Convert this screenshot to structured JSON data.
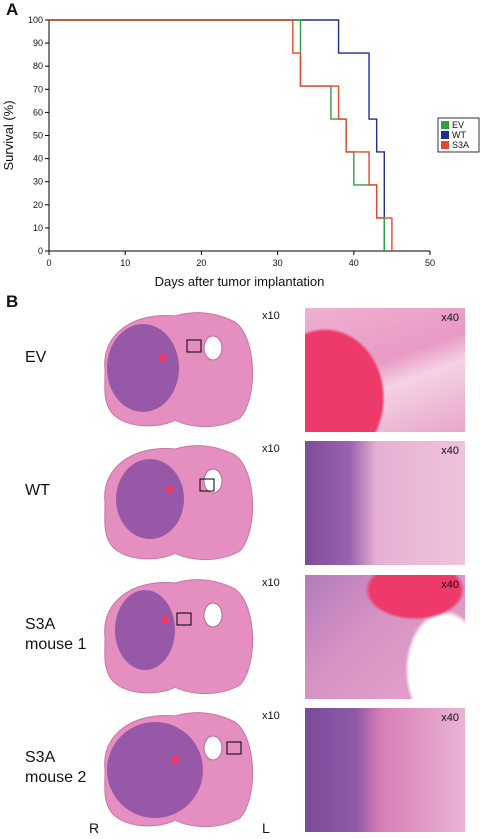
{
  "panel_a_letter": "A",
  "panel_b_letter": "B",
  "chart_data": {
    "type": "line",
    "step": true,
    "title": "",
    "xlabel": "Days after tumor implantation",
    "ylabel": "Survival (%)",
    "xlim": [
      0,
      50
    ],
    "ylim": [
      0,
      100
    ],
    "xticks": [
      0,
      10,
      20,
      30,
      40,
      50
    ],
    "yticks": [
      0,
      10,
      20,
      30,
      40,
      50,
      60,
      70,
      80,
      90,
      100
    ],
    "grid": false,
    "legend_position": "right",
    "series": [
      {
        "name": "EV",
        "color": "#2ea043",
        "x": [
          0,
          33,
          37,
          39,
          40,
          43,
          44,
          44
        ],
        "y": [
          100,
          71.4,
          57.1,
          42.9,
          28.6,
          14.3,
          0,
          0
        ]
      },
      {
        "name": "WT",
        "color": "#1f2d8f",
        "x": [
          0,
          38,
          42,
          43,
          44,
          44
        ],
        "y": [
          100,
          85.7,
          57.1,
          42.9,
          0,
          0
        ]
      },
      {
        "name": "S3A",
        "color": "#e04a30",
        "x": [
          0,
          32,
          33,
          38,
          39,
          42,
          43,
          44,
          45,
          45
        ],
        "y": [
          100,
          85.7,
          71.4,
          57.1,
          42.9,
          28.6,
          14.3,
          14.3,
          0,
          0
        ]
      }
    ]
  },
  "panel_b": {
    "rows": [
      {
        "label_line1": "EV",
        "label_line2": "",
        "mag_low": "x10",
        "mag_high": "x40"
      },
      {
        "label_line1": "WT",
        "label_line2": "",
        "mag_low": "x10",
        "mag_high": "x40"
      },
      {
        "label_line1": "S3A",
        "label_line2": "mouse 1",
        "mag_low": "x10",
        "mag_high": "x40"
      },
      {
        "label_line1": "S3A",
        "label_line2": "mouse 2",
        "mag_low": "x10",
        "mag_high": "x40"
      }
    ],
    "orientation_left": "R",
    "orientation_right": "L",
    "stain_colors": {
      "tissue": "#e58fc0",
      "tumor": "#8a4fa3",
      "blood": "#ee3a6a"
    }
  }
}
